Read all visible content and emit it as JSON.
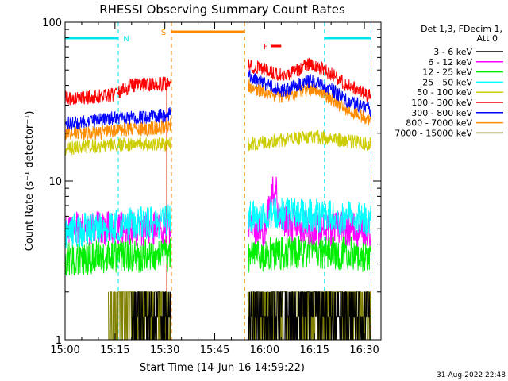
{
  "chart_data": {
    "type": "line",
    "title": "RHESSI Observing Summary Count Rates",
    "xlabel": "Start Time (14-Jun-16 14:59:22)",
    "ylabel": "Count Rate (s⁻¹ detector⁻¹)",
    "x_range": [
      "15:00",
      "16:35"
    ],
    "ylim": [
      1,
      100
    ],
    "log_y": true,
    "x_ticks": [
      "15:00",
      "15:15",
      "15:30",
      "15:45",
      "16:00",
      "16:15",
      "16:30"
    ],
    "y_ticks": [
      "1",
      "10",
      "100"
    ],
    "legend_header": [
      "Det 1,3, FDecim 1,",
      "Att 0"
    ],
    "legend_position": "right",
    "timestamp": "31-Aug-2022 22:48",
    "data_gaps": [
      [
        "15:32",
        "15:55"
      ]
    ],
    "flags": [
      {
        "label": "N",
        "color": "#00e5ee",
        "intervals": [
          [
            "15:00",
            "15:16"
          ],
          [
            "16:18",
            "16:32"
          ]
        ],
        "markers": [
          "15:16",
          "16:18",
          "16:32"
        ]
      },
      {
        "label": "S",
        "color": "#ff8c00",
        "intervals": [
          [
            "15:32",
            "15:54"
          ]
        ],
        "markers": [
          "15:32",
          "15:54"
        ]
      },
      {
        "label": "F",
        "color": "#ff0000",
        "intervals": [
          [
            "16:02",
            "16:05"
          ]
        ],
        "markers": []
      }
    ],
    "series": [
      {
        "name": "3 - 6 keV",
        "color": "#000000",
        "x": [
          "15:20",
          "15:31",
          "15:55",
          "16:00",
          "16:05",
          "16:15",
          "16:32"
        ],
        "values": [
          1.5,
          1.5,
          1.5,
          1.4,
          1.8,
          1.5,
          1.5
        ]
      },
      {
        "name": "6 - 12 keV",
        "color": "#ff00ff",
        "x": [
          "15:00",
          "15:15",
          "15:31",
          "15:55",
          "16:00",
          "16:03",
          "16:05",
          "16:15",
          "16:32"
        ],
        "values": [
          5.0,
          5.0,
          5.0,
          5.0,
          5.0,
          9.5,
          5.5,
          5.0,
          5.0
        ]
      },
      {
        "name": "12 - 25 keV",
        "color": "#00ee00",
        "x": [
          "15:00",
          "15:15",
          "15:31",
          "15:55",
          "16:05",
          "16:15",
          "16:32"
        ],
        "values": [
          3.2,
          3.4,
          3.4,
          3.4,
          3.5,
          3.6,
          3.4
        ]
      },
      {
        "name": "25 - 50 keV",
        "color": "#00ffff",
        "x": [
          "15:00",
          "15:15",
          "15:31",
          "15:55",
          "16:05",
          "16:15",
          "16:32"
        ],
        "values": [
          4.8,
          5.2,
          5.6,
          5.8,
          6.3,
          6.0,
          5.7
        ]
      },
      {
        "name": "50 - 100 keV",
        "color": "#cccc00",
        "x": [
          "15:00",
          "15:15",
          "15:31",
          "15:55",
          "16:05",
          "16:15",
          "16:32"
        ],
        "values": [
          16,
          17,
          17,
          17,
          18,
          19,
          17
        ]
      },
      {
        "name": "100 - 300 keV",
        "color": "#ff0000",
        "x": [
          "15:00",
          "15:10",
          "15:15",
          "15:20",
          "15:31",
          "15:55",
          "16:00",
          "16:05",
          "16:10",
          "16:14",
          "16:18",
          "16:25",
          "16:32"
        ],
        "values": [
          33,
          34,
          35,
          40,
          41,
          54,
          50,
          46,
          50,
          55,
          50,
          40,
          34
        ]
      },
      {
        "name": "300 - 800 keV",
        "color": "#0000ff",
        "x": [
          "15:00",
          "15:10",
          "15:15",
          "15:20",
          "15:31",
          "15:55",
          "16:00",
          "16:05",
          "16:10",
          "16:14",
          "16:18",
          "16:25",
          "16:32"
        ],
        "values": [
          23,
          24,
          25,
          25,
          26,
          46,
          41,
          37,
          40,
          43,
          40,
          32,
          28
        ]
      },
      {
        "name": "800 - 7000 keV",
        "color": "#ff8c00",
        "x": [
          "15:00",
          "15:10",
          "15:15",
          "15:20",
          "15:31",
          "15:55",
          "16:00",
          "16:05",
          "16:10",
          "16:14",
          "16:18",
          "16:25",
          "16:32"
        ],
        "values": [
          20,
          20,
          21,
          21,
          22,
          40,
          36,
          34,
          36,
          38,
          35,
          28,
          24
        ]
      },
      {
        "name": "7000 - 15000 keV",
        "color": "#808000",
        "x": [
          "15:13",
          "15:31",
          "15:55",
          "16:05",
          "16:15",
          "16:32"
        ],
        "values": [
          1.2,
          1.2,
          1.2,
          1.2,
          1.2,
          1.2
        ]
      }
    ]
  }
}
